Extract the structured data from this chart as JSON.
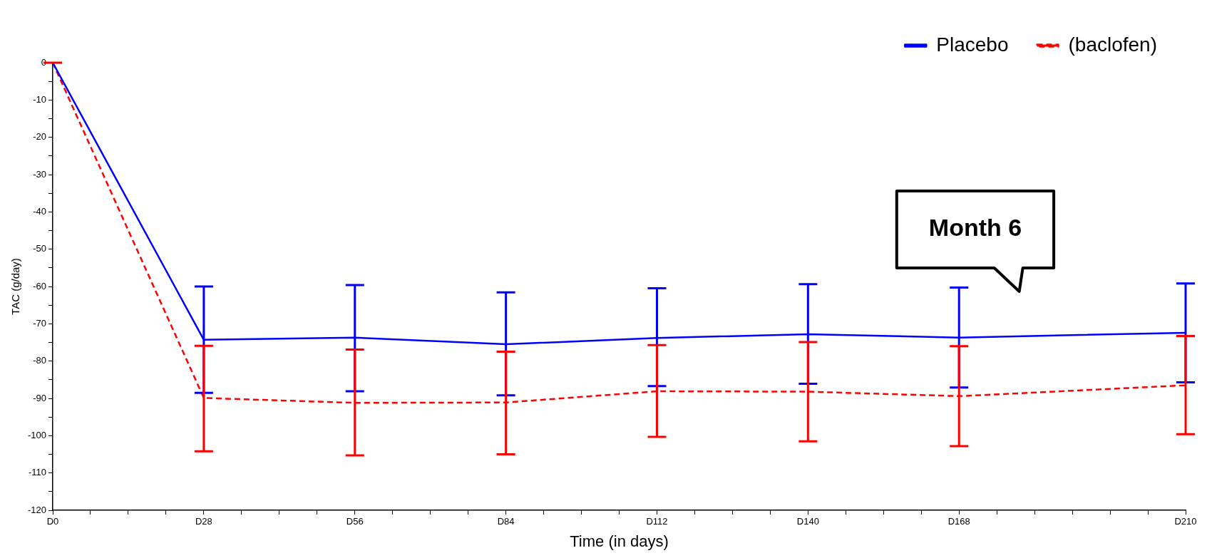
{
  "chart_data": {
    "type": "line",
    "xlabel": "Time (in days)",
    "ylabel": "TAC (g/day)",
    "categories": [
      "D0",
      null,
      null,
      null,
      "D28",
      null,
      null,
      null,
      "D56",
      null,
      null,
      null,
      "D84",
      null,
      null,
      null,
      "D112",
      null,
      null,
      null,
      "D140",
      null,
      null,
      null,
      "D168",
      null,
      null,
      null,
      null,
      null,
      "D210"
    ],
    "series": [
      {
        "name": "Placebo",
        "color": "#0000ff",
        "line_style": "solid",
        "values": [
          0,
          null,
          null,
          null,
          -74.3,
          null,
          null,
          null,
          -73.7,
          null,
          null,
          null,
          -75.5,
          null,
          null,
          null,
          -73.8,
          null,
          null,
          null,
          -72.8,
          null,
          null,
          null,
          -73.7,
          null,
          null,
          null,
          null,
          null,
          -72.4
        ],
        "errors": [
          null,
          null,
          null,
          null,
          [
            -88.5,
            -60
          ],
          null,
          null,
          null,
          [
            -88.1,
            -59.6
          ],
          null,
          null,
          null,
          [
            -89.2,
            -61.6
          ],
          null,
          null,
          null,
          [
            -86.7,
            -60.5
          ],
          null,
          null,
          null,
          [
            -86.1,
            -59.4
          ],
          null,
          null,
          null,
          [
            -87.1,
            -60.3
          ],
          null,
          null,
          null,
          null,
          null,
          [
            -85.7,
            -59.2
          ]
        ]
      },
      {
        "name": "(baclofen)",
        "color": "#ff0000",
        "line_style": "dashed",
        "values": [
          0,
          null,
          null,
          null,
          -89.9,
          null,
          null,
          null,
          -91.2,
          null,
          null,
          null,
          -91.1,
          null,
          null,
          null,
          -88.1,
          null,
          null,
          null,
          -88.2,
          null,
          null,
          null,
          -89.4,
          null,
          null,
          null,
          null,
          null,
          -86.5
        ],
        "errors": [
          [
            0,
            0
          ],
          null,
          null,
          null,
          [
            -104.2,
            -75.9
          ],
          null,
          null,
          null,
          [
            -105.3,
            -76.9
          ],
          null,
          null,
          null,
          [
            -105.0,
            -77.5
          ],
          null,
          null,
          null,
          [
            -100.3,
            -75.7
          ],
          null,
          null,
          null,
          [
            -101.5,
            -74.9
          ],
          null,
          null,
          null,
          [
            -102.8,
            -76.0
          ],
          null,
          null,
          null,
          null,
          null,
          [
            -99.6,
            -73.3
          ]
        ]
      }
    ],
    "ylim": [
      -120,
      0
    ],
    "yticks": [
      -120,
      {
        "value": -115,
        "label": null
      },
      -110,
      {
        "value": -105,
        "label": null
      },
      -100,
      {
        "value": -95,
        "label": null
      },
      -90,
      {
        "value": -85,
        "label": null
      },
      -80,
      {
        "value": -75,
        "label": null
      },
      -70,
      {
        "value": -65,
        "label": null
      },
      -60,
      {
        "value": -55,
        "label": null
      },
      -50,
      {
        "value": -45,
        "label": null
      },
      -40,
      {
        "value": -35,
        "label": null
      },
      -30,
      {
        "value": -25,
        "label": null
      },
      -20,
      {
        "value": -15,
        "label": null
      },
      -10,
      {
        "value": -5,
        "label": null
      },
      0
    ],
    "annotations": [
      "Month 6"
    ],
    "grid": false,
    "legend": "top right",
    "marker": "none"
  }
}
